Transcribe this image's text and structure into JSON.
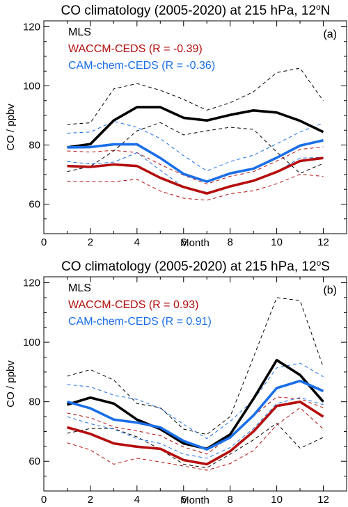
{
  "colors": {
    "mls": "#000000",
    "waccm": "#b50d0d",
    "camchem": "#1a6fe8"
  },
  "chart_data": [
    {
      "type": "line",
      "title": "CO climatology (2005-2020) at 215 hPa, 12",
      "title_sup": "o",
      "title_end": "N",
      "panel_label": "(a)",
      "xlabel": "Month",
      "ylabel": "CO / ppbv",
      "xlim": [
        0,
        13
      ],
      "ylim": [
        50,
        122
      ],
      "xticks": [
        0,
        2,
        4,
        6,
        8,
        10,
        12
      ],
      "yticks": [
        60,
        80,
        100,
        120
      ],
      "legend_position": "top-left",
      "x": [
        1,
        2,
        3,
        4,
        5,
        6,
        7,
        8,
        9,
        10,
        11,
        12
      ],
      "series": [
        {
          "name": "MLS",
          "color_key": "mls",
          "values": [
            79.2,
            80.3,
            88.3,
            92.8,
            92.8,
            89.2,
            88.3,
            90.2,
            91.7,
            91.0,
            88.2,
            84.4
          ],
          "upper": [
            87.0,
            87.5,
            99.0,
            100.8,
            98.5,
            95.4,
            91.8,
            94.3,
            98.0,
            104.5,
            106.0,
            95.0
          ],
          "lower": [
            71.0,
            72.8,
            78.0,
            84.8,
            87.6,
            83.4,
            84.8,
            86.0,
            85.3,
            77.6,
            70.4,
            73.8
          ]
        },
        {
          "name": "WACCM-CEDS (R = -0.39)",
          "color_key": "waccm",
          "values": [
            72.9,
            72.6,
            73.4,
            72.9,
            68.9,
            65.8,
            63.6,
            66.0,
            67.9,
            70.9,
            74.6,
            75.6
          ],
          "upper": [
            78.0,
            77.6,
            78.2,
            77.4,
            73.4,
            69.8,
            66.8,
            69.4,
            71.0,
            74.6,
            78.5,
            79.4
          ],
          "lower": [
            67.8,
            67.6,
            67.6,
            68.4,
            64.4,
            62.0,
            61.3,
            63.5,
            64.5,
            66.9,
            70.1,
            69.4
          ]
        },
        {
          "name": "CAM-chem-CEDS (R = -0.36)",
          "color_key": "camchem",
          "values": [
            79.2,
            79.3,
            80.2,
            80.2,
            75.6,
            70.2,
            67.6,
            70.4,
            72.0,
            75.7,
            79.8,
            81.6
          ],
          "upper": [
            84.0,
            84.4,
            88.0,
            86.0,
            82.2,
            76.4,
            71.2,
            74.4,
            76.6,
            80.4,
            84.4,
            87.4
          ],
          "lower": [
            74.4,
            73.6,
            74.2,
            77.4,
            71.4,
            65.8,
            64.0,
            66.0,
            68.0,
            71.0,
            75.6,
            75.8
          ]
        }
      ]
    },
    {
      "type": "line",
      "title": "CO climatology (2005-2020) at 215 hPa, 12",
      "title_sup": "o",
      "title_end": "S",
      "panel_label": "(b)",
      "xlabel": "Month",
      "ylabel": "CO / ppbv",
      "xlim": [
        0,
        13
      ],
      "ylim": [
        50,
        122
      ],
      "xticks": [
        0,
        2,
        4,
        6,
        8,
        10,
        12
      ],
      "yticks": [
        60,
        80,
        100,
        120
      ],
      "legend_position": "top-left",
      "x": [
        1,
        2,
        3,
        4,
        5,
        6,
        7,
        8,
        9,
        10,
        11,
        12
      ],
      "series": [
        {
          "name": "MLS",
          "color_key": "mls",
          "values": [
            79.0,
            81.4,
            79.4,
            74.0,
            70.8,
            66.0,
            64.2,
            69.0,
            81.0,
            94.0,
            89.0,
            80.0
          ],
          "upper": [
            88.6,
            90.8,
            87.3,
            79.4,
            78.0,
            70.8,
            69.0,
            75.0,
            95.0,
            115.0,
            114.0,
            91.6
          ],
          "lower": [
            69.4,
            71.0,
            71.0,
            68.2,
            64.0,
            59.0,
            57.8,
            62.4,
            67.2,
            72.8,
            64.4,
            68.0
          ]
        },
        {
          "name": "WACCM-CEDS (R = 0.93)",
          "color_key": "waccm",
          "values": [
            71.4,
            69.2,
            66.0,
            64.9,
            64.2,
            60.4,
            59.0,
            63.4,
            70.0,
            78.6,
            80.0,
            75.0
          ],
          "upper": [
            76.2,
            74.6,
            71.6,
            70.2,
            68.6,
            64.8,
            62.4,
            68.4,
            75.2,
            81.6,
            81.0,
            78.0
          ],
          "lower": [
            66.2,
            63.8,
            59.0,
            61.0,
            59.8,
            58.4,
            57.0,
            59.2,
            63.6,
            72.2,
            78.0,
            70.8
          ]
        },
        {
          "name": "CAM-chem-CEDS (R = 0.91)",
          "color_key": "camchem",
          "values": [
            80.0,
            77.8,
            74.0,
            73.0,
            71.4,
            66.8,
            64.0,
            68.0,
            75.4,
            84.6,
            87.0,
            83.6
          ],
          "upper": [
            85.8,
            85.0,
            82.2,
            80.8,
            77.8,
            72.4,
            67.6,
            73.4,
            80.6,
            91.4,
            93.0,
            88.4
          ],
          "lower": [
            75.0,
            72.6,
            70.8,
            67.6,
            66.0,
            62.4,
            61.0,
            64.6,
            71.0,
            79.4,
            81.4,
            79.0
          ]
        }
      ]
    }
  ]
}
